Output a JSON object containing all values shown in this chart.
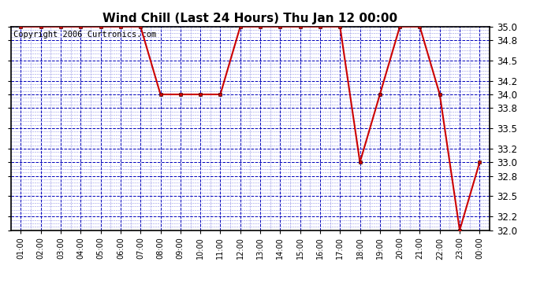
{
  "title": "Wind Chill (Last 24 Hours) Thu Jan 12 00:00",
  "copyright": "Copyright 2006 Curtronics.com",
  "x_labels": [
    "01:00",
    "02:00",
    "03:00",
    "04:00",
    "05:00",
    "06:00",
    "07:00",
    "08:00",
    "09:00",
    "10:00",
    "11:00",
    "12:00",
    "13:00",
    "14:00",
    "15:00",
    "16:00",
    "17:00",
    "18:00",
    "19:00",
    "20:00",
    "21:00",
    "22:00",
    "23:00",
    "00:00"
  ],
  "x_values": [
    1,
    2,
    3,
    4,
    5,
    6,
    7,
    8,
    9,
    10,
    11,
    12,
    13,
    14,
    15,
    16,
    17,
    18,
    19,
    20,
    21,
    22,
    23,
    24
  ],
  "y_values": [
    35.0,
    35.0,
    35.0,
    35.0,
    35.0,
    35.0,
    35.0,
    34.0,
    34.0,
    34.0,
    34.0,
    35.0,
    35.0,
    35.0,
    35.0,
    35.0,
    35.0,
    33.0,
    34.0,
    35.0,
    35.0,
    34.0,
    32.0,
    33.0
  ],
  "ylim": [
    32.0,
    35.0
  ],
  "yticks": [
    32.0,
    32.2,
    32.5,
    32.8,
    33.0,
    33.2,
    33.5,
    33.8,
    34.0,
    34.2,
    34.5,
    34.8,
    35.0
  ],
  "line_color": "#cc0000",
  "marker_color": "#cc0000",
  "bg_color": "#ffffff",
  "grid_major_color": "#0000bb",
  "grid_minor_color": "#6666dd",
  "border_color": "#000000",
  "title_fontsize": 11,
  "copyright_fontsize": 7.5,
  "figsize": [
    6.9,
    3.75
  ],
  "dpi": 100
}
